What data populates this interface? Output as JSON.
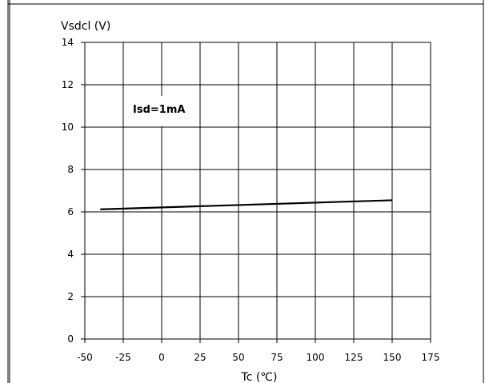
{
  "chart_data": {
    "type": "line",
    "title": "",
    "ylabel": "Vsdcl (V)",
    "xlabel": "Tc (℃)",
    "xlim": [
      -50,
      175
    ],
    "ylim": [
      0,
      14
    ],
    "x_ticks": [
      "-50",
      "-25",
      "0",
      "25",
      "50",
      "75",
      "100",
      "125",
      "150",
      "175"
    ],
    "y_ticks": [
      "0",
      "2",
      "4",
      "6",
      "8",
      "10",
      "12",
      "14"
    ],
    "grid": true,
    "annotation": "Isd=1mA",
    "series": [
      {
        "x": [
          -40,
          150
        ],
        "y": [
          6.12,
          6.55
        ]
      }
    ]
  }
}
